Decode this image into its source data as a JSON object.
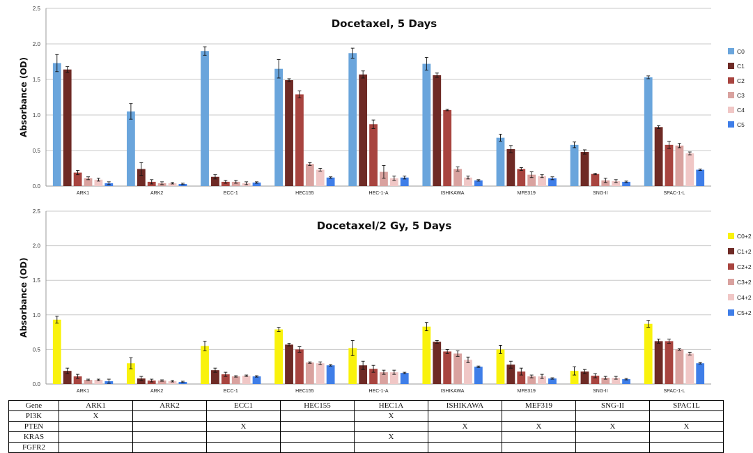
{
  "colors": {
    "top": [
      "#6aa5dc",
      "#6e2a25",
      "#a8443f",
      "#d9a29f",
      "#f0c7c6",
      "#3f7ee8"
    ],
    "bottom": [
      "#f9f20c",
      "#6e2a25",
      "#a8443f",
      "#d9a29f",
      "#f0c7c6",
      "#3f7ee8"
    ]
  },
  "chart_data": [
    {
      "type": "bar",
      "title": "Docetaxel, 5 Days",
      "ylabel": "Absorbance (OD)",
      "xlabel": "",
      "ylim": [
        0,
        2.5
      ],
      "yticks": [
        "0.0",
        "0.5",
        "1.0",
        "1.5",
        "2.0",
        "2.5"
      ],
      "legend_position": "right",
      "categories": [
        "ARK1",
        "ARK2",
        "ECC-1",
        "HEC155",
        "HEC-1-A",
        "ISHIKAWA",
        "MFE319",
        "SNG-II",
        "SPAC-1-L"
      ],
      "series": [
        {
          "name": "C0",
          "values": [
            1.73,
            1.05,
            1.9,
            1.65,
            1.87,
            1.72,
            0.68,
            0.58,
            1.53
          ],
          "errors": [
            0.12,
            0.11,
            0.06,
            0.13,
            0.07,
            0.09,
            0.05,
            0.04,
            0.02
          ]
        },
        {
          "name": "C1",
          "values": [
            1.64,
            0.24,
            0.13,
            1.49,
            1.57,
            1.56,
            0.52,
            0.48,
            0.83
          ],
          "errors": [
            0.04,
            0.09,
            0.03,
            0.02,
            0.05,
            0.03,
            0.05,
            0.03,
            0.02
          ]
        },
        {
          "name": "C2",
          "values": [
            0.19,
            0.06,
            0.06,
            1.29,
            0.87,
            1.07,
            0.24,
            0.17,
            0.58
          ],
          "errors": [
            0.03,
            0.03,
            0.02,
            0.05,
            0.06,
            0.01,
            0.02,
            0.01,
            0.05
          ]
        },
        {
          "name": "C3",
          "values": [
            0.11,
            0.04,
            0.06,
            0.31,
            0.2,
            0.24,
            0.16,
            0.08,
            0.57
          ],
          "errors": [
            0.02,
            0.02,
            0.02,
            0.02,
            0.09,
            0.03,
            0.04,
            0.03,
            0.03
          ]
        },
        {
          "name": "C4",
          "values": [
            0.09,
            0.04,
            0.04,
            0.23,
            0.11,
            0.12,
            0.14,
            0.07,
            0.46
          ],
          "errors": [
            0.02,
            0.01,
            0.02,
            0.02,
            0.03,
            0.02,
            0.02,
            0.02,
            0.02
          ]
        },
        {
          "name": "C5",
          "values": [
            0.04,
            0.03,
            0.05,
            0.12,
            0.12,
            0.08,
            0.11,
            0.06,
            0.23
          ],
          "errors": [
            0.02,
            0.01,
            0.01,
            0.01,
            0.02,
            0.01,
            0.02,
            0.01,
            0.01
          ]
        }
      ]
    },
    {
      "type": "bar",
      "title": "Docetaxel/2 Gy, 5 Days",
      "ylabel": "Absorbance (OD)",
      "xlabel": "",
      "ylim": [
        0,
        2.5
      ],
      "yticks": [
        "0.0",
        "0.5",
        "1.0",
        "1.5",
        "2.0",
        "2.5"
      ],
      "legend_position": "right",
      "categories": [
        "ARK1",
        "ARK2",
        "ECC-1",
        "HEC155",
        "HEC-1-A",
        "ISHIKAWA",
        "MFE319",
        "SNG-II",
        "SPAC-1-L"
      ],
      "series": [
        {
          "name": "C0+2 Gy",
          "values": [
            0.93,
            0.3,
            0.55,
            0.79,
            0.52,
            0.83,
            0.5,
            0.19,
            0.87
          ],
          "errors": [
            0.05,
            0.08,
            0.07,
            0.03,
            0.11,
            0.06,
            0.06,
            0.06,
            0.05
          ]
        },
        {
          "name": "C1+2 Gy",
          "values": [
            0.19,
            0.08,
            0.2,
            0.57,
            0.27,
            0.61,
            0.28,
            0.18,
            0.62
          ],
          "errors": [
            0.04,
            0.03,
            0.03,
            0.02,
            0.06,
            0.02,
            0.05,
            0.03,
            0.03
          ]
        },
        {
          "name": "C2+2 Gy",
          "values": [
            0.11,
            0.05,
            0.14,
            0.5,
            0.22,
            0.47,
            0.18,
            0.12,
            0.62
          ],
          "errors": [
            0.03,
            0.02,
            0.03,
            0.04,
            0.05,
            0.03,
            0.05,
            0.03,
            0.03
          ]
        },
        {
          "name": "C3+2 Gy",
          "values": [
            0.06,
            0.05,
            0.11,
            0.31,
            0.17,
            0.44,
            0.11,
            0.09,
            0.5
          ],
          "errors": [
            0.01,
            0.01,
            0.01,
            0.01,
            0.03,
            0.04,
            0.02,
            0.02,
            0.01
          ]
        },
        {
          "name": "C4+2 Gy",
          "values": [
            0.06,
            0.04,
            0.12,
            0.3,
            0.17,
            0.35,
            0.11,
            0.09,
            0.44
          ],
          "errors": [
            0.01,
            0.01,
            0.01,
            0.02,
            0.03,
            0.04,
            0.03,
            0.02,
            0.02
          ]
        },
        {
          "name": "C5+2 Gy",
          "values": [
            0.04,
            0.03,
            0.11,
            0.27,
            0.16,
            0.25,
            0.08,
            0.07,
            0.3
          ],
          "errors": [
            0.03,
            0.01,
            0.01,
            0.01,
            0.01,
            0.01,
            0.01,
            0.01,
            0.01
          ]
        }
      ]
    }
  ],
  "gene_table": {
    "header": [
      "Gene",
      "ARK1",
      "ARK2",
      "ECC1",
      "HEC155",
      "HEC1A",
      "ISHIKAWA",
      "MEF319",
      "SNG-II",
      "SPAC1L"
    ],
    "rows": [
      [
        "PI3K",
        "X",
        "",
        "",
        "",
        "X",
        "",
        "",
        "",
        ""
      ],
      [
        "PTEN",
        "",
        "",
        "X",
        "",
        "",
        "X",
        "X",
        "X",
        "X"
      ],
      [
        "KRAS",
        "",
        "",
        "",
        "",
        "X",
        "",
        "",
        "",
        ""
      ],
      [
        "FGFR2",
        "",
        "",
        "",
        "",
        "",
        "",
        "",
        "",
        ""
      ]
    ]
  }
}
